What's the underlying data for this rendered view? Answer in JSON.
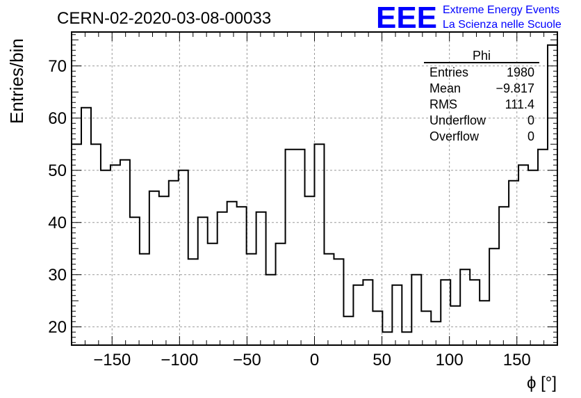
{
  "title": "CERN-02-2020-03-08-00033",
  "logo": {
    "mark": "EEE",
    "line1": "Extreme Energy Events",
    "line2": "La Scienza nelle Scuole",
    "color": "#0000ff"
  },
  "stats": {
    "name": "Phi",
    "rows": [
      {
        "label": "Entries",
        "value": "1980"
      },
      {
        "label": "Mean",
        "value": "−9.817"
      },
      {
        "label": "RMS",
        "value": "111.4"
      },
      {
        "label": "Underflow",
        "value": "0"
      },
      {
        "label": "Overflow",
        "value": "0"
      }
    ]
  },
  "chart_data": {
    "type": "bar",
    "style": "step-histogram",
    "title": "CERN-02-2020-03-08-00033",
    "xlabel": "ϕ [°]",
    "ylabel": "Entries/bin",
    "xlim": [
      -180,
      180
    ],
    "ylim": [
      16.5,
      76.5
    ],
    "bin_width": 7.2,
    "x_ticks": [
      -150,
      -100,
      -50,
      0,
      50,
      100,
      150
    ],
    "x_tick_labels": [
      "−150",
      "−100",
      "−50",
      "0",
      "50",
      "100",
      "150"
    ],
    "y_ticks": [
      20,
      30,
      40,
      50,
      60,
      70
    ],
    "y_tick_labels": [
      "20",
      "30",
      "40",
      "50",
      "60",
      "70"
    ],
    "grid": true,
    "legend": "top-right stats box",
    "values": [
      55,
      62,
      55,
      50,
      51,
      52,
      41,
      34,
      46,
      45,
      48,
      50,
      33,
      41,
      36,
      42,
      44,
      43,
      34,
      42,
      30,
      36,
      54,
      54,
      45,
      55,
      34,
      33,
      22,
      28,
      29,
      23,
      19,
      28,
      19,
      30,
      23,
      21,
      29,
      24,
      31,
      29,
      25,
      35,
      43,
      48,
      51,
      50,
      54,
      74
    ],
    "line_color": "#000000"
  }
}
